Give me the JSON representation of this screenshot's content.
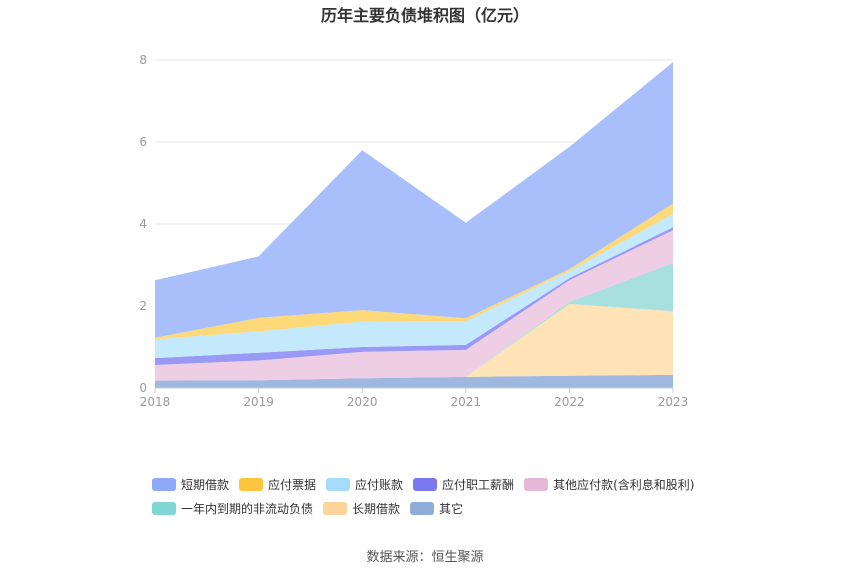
{
  "title": "历年主要负债堆积图（亿元）",
  "source": "数据来源：恒生聚源",
  "chart_data": {
    "type": "area",
    "stacked": true,
    "title": "历年主要负债堆积图（亿元）",
    "categories": [
      "2018",
      "2019",
      "2020",
      "2021",
      "2022",
      "2023"
    ],
    "yticks": [
      "0",
      "2",
      "4",
      "6",
      "8"
    ],
    "ylim": [
      0,
      8
    ],
    "grid": true,
    "legend_position": "bottom",
    "series": [
      {
        "name": "其它",
        "color": "#9fb8e0",
        "values": [
          0.18,
          0.19,
          0.24,
          0.27,
          0.3,
          0.32
        ]
      },
      {
        "name": "长期借款",
        "color": "#fde3b5",
        "values": [
          0,
          0,
          0,
          0,
          1.75,
          1.55
        ]
      },
      {
        "name": "一年内到期的非流动负债",
        "color": "#a8e0df",
        "values": [
          0,
          0,
          0,
          0,
          0.05,
          1.18
        ]
      },
      {
        "name": "其他应付款(含利息和股利)",
        "color": "#eecee4",
        "values": [
          0.38,
          0.48,
          0.64,
          0.66,
          0.53,
          0.8
        ]
      },
      {
        "name": "应付职工薪酬",
        "color": "#9a99f5",
        "values": [
          0.17,
          0.19,
          0.12,
          0.12,
          0.05,
          0.07
        ]
      },
      {
        "name": "应付账款",
        "color": "#c4e8fc",
        "values": [
          0.46,
          0.52,
          0.62,
          0.58,
          0.17,
          0.33
        ]
      },
      {
        "name": "应付票据",
        "color": "#fdd97a",
        "values": [
          0.04,
          0.33,
          0.28,
          0.07,
          0.05,
          0.25
        ]
      },
      {
        "name": "短期借款",
        "color": "#a8bffc",
        "values": [
          1.4,
          1.5,
          3.9,
          2.33,
          2.98,
          3.45
        ]
      }
    ],
    "legend_order": [
      {
        "name": "短期借款",
        "color": "#8ea9f7"
      },
      {
        "name": "应付票据",
        "color": "#fbc53e"
      },
      {
        "name": "应付账款",
        "color": "#a4dcf9"
      },
      {
        "name": "应付职工薪酬",
        "color": "#7b79f0"
      },
      {
        "name": "其他应付款(含利息和股利)",
        "color": "#e6b8d8"
      },
      {
        "name": "一年内到期的非流动负债",
        "color": "#7fd6d4"
      },
      {
        "name": "长期借款",
        "color": "#fdd49a"
      },
      {
        "name": "其它",
        "color": "#8fadd9"
      }
    ]
  }
}
